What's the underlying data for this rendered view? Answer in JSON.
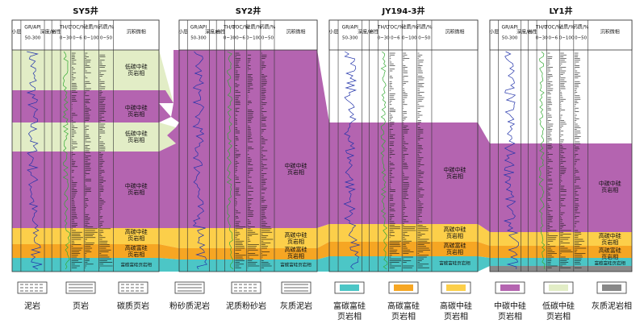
{
  "columns": [
    {
      "name": "小层"
    },
    {
      "name": "GR/API",
      "range": "50-300"
    },
    {
      "name": "深度/m"
    },
    {
      "name": "岩性"
    },
    {
      "name": "TH/U",
      "range": "0~30"
    },
    {
      "name": "TOC/%",
      "range": "0~6"
    },
    {
      "name": "硅质/%",
      "range": "0~100"
    },
    {
      "name": "钙质/%",
      "range": "0~50"
    },
    {
      "name": "沉积微相"
    }
  ],
  "wells": [
    {
      "name": "SY5井",
      "facies": [
        {
          "lines": [
            "低碳中硅",
            "页岩相"
          ]
        },
        {
          "lines": [
            "中碳中硅",
            "页岩相"
          ]
        },
        {
          "lines": [
            "低碳中硅",
            "页岩相"
          ]
        },
        {
          "lines": [
            "中碳中硅",
            "页岩相"
          ]
        },
        {
          "lines": [
            "高碳中硅",
            "页岩相"
          ]
        },
        {
          "lines": [
            "高碳富硅",
            "页岩相"
          ]
        },
        {
          "lines": [
            "富碳富硅页岩相"
          ]
        }
      ]
    },
    {
      "name": "SY2井",
      "facies": [
        {
          "lines": [
            "中碳中硅",
            "页岩相"
          ]
        },
        {
          "lines": [
            "高碳中硅",
            "页岩相"
          ]
        },
        {
          "lines": [
            "高碳富硅",
            "页岩相"
          ]
        },
        {
          "lines": [
            "富碳富硅页岩相"
          ]
        }
      ]
    },
    {
      "name": "JY194-3井",
      "facies": [
        {
          "lines": [
            "中碳中硅",
            "页岩相"
          ]
        },
        {
          "lines": [
            "高碳中硅",
            "页岩相"
          ]
        },
        {
          "lines": [
            "高碳富硅",
            "页岩相"
          ]
        },
        {
          "lines": [
            "富碳富硅页岩相"
          ]
        }
      ]
    },
    {
      "name": "LY1井",
      "facies": [
        {
          "lines": [
            "中碳中硅",
            "页岩相"
          ]
        },
        {
          "lines": [
            "高碳中硅",
            "页岩相"
          ]
        },
        {
          "lines": [
            "高碳富硅",
            "页岩相"
          ]
        },
        {
          "lines": [
            "富碳富硅页岩相"
          ]
        }
      ]
    }
  ],
  "legend": [
    {
      "lines": [
        "泥岩"
      ]
    },
    {
      "lines": [
        "页岩"
      ]
    },
    {
      "lines": [
        "碳质页岩"
      ]
    },
    {
      "lines": [
        "粉砂质泥岩"
      ]
    },
    {
      "lines": [
        "泥质粉砂岩"
      ]
    },
    {
      "lines": [
        "灰质泥岩"
      ]
    },
    {
      "lines": [
        "富碳富硅",
        "页岩相"
      ],
      "color": "#4cc6c6"
    },
    {
      "lines": [
        "高碳富硅",
        "页岩相"
      ],
      "color": "#f6a623"
    },
    {
      "lines": [
        "高碳中硅",
        "页岩相"
      ],
      "color": "#fccf4a"
    },
    {
      "lines": [
        "中碳中硅",
        "页岩相"
      ],
      "color": "#b464b0"
    },
    {
      "lines": [
        "低碳中硅",
        "页岩相"
      ],
      "color": "#e2edc6"
    },
    {
      "lines": [
        "灰质泥岩相"
      ],
      "color": "#888888"
    }
  ]
}
